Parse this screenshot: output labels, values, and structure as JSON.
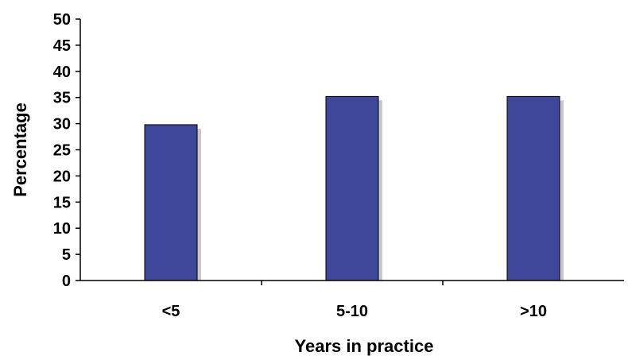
{
  "chart_data": {
    "type": "bar",
    "categories": [
      "<5",
      "5-10",
      ">10"
    ],
    "values": [
      29.8,
      35.2,
      35.2
    ],
    "xlabel": "Years in practice",
    "ylabel": "Percentage",
    "ylim": [
      0,
      50
    ],
    "yticks": [
      0,
      5,
      10,
      15,
      20,
      25,
      30,
      35,
      40,
      45,
      50
    ],
    "grid": false,
    "legend": "none",
    "colors": {
      "bar": "#3f479a",
      "shadow": "#c8c8c8",
      "axis": "#000000"
    }
  }
}
